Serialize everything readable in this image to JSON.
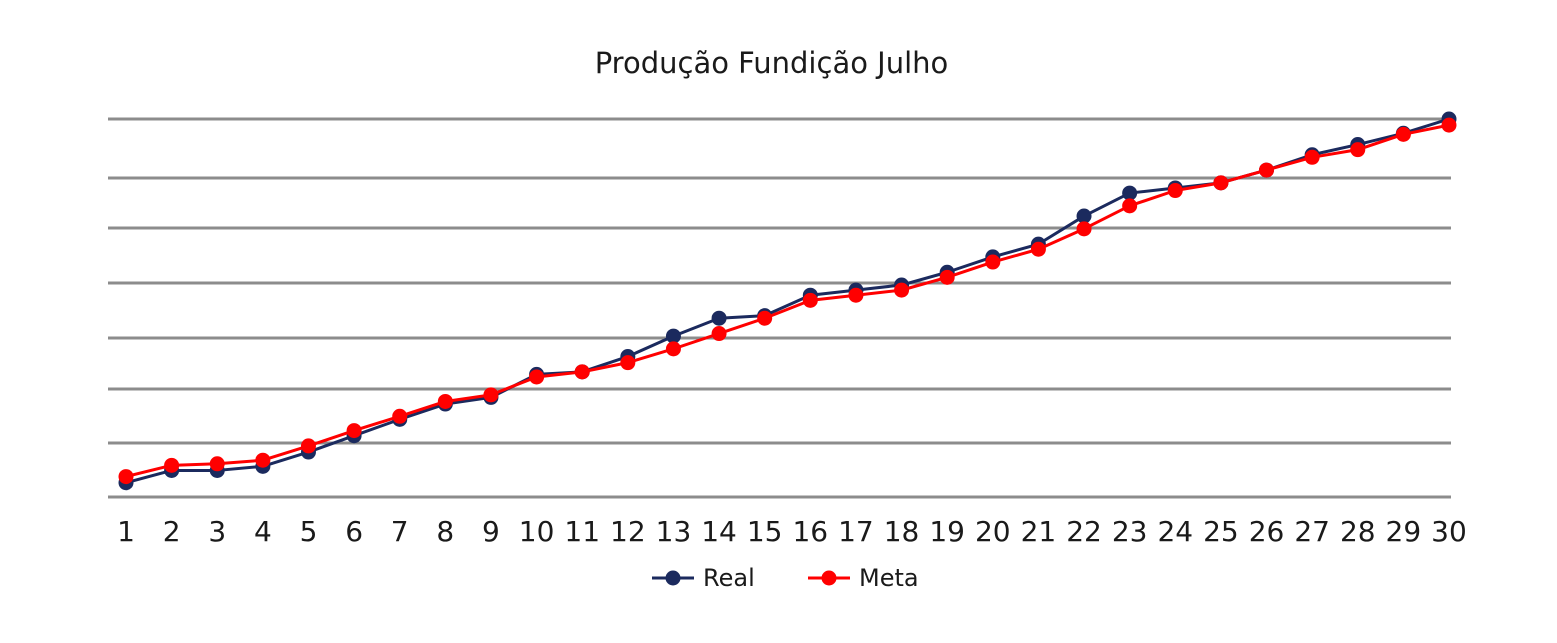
{
  "chart_data": {
    "type": "line",
    "title": "Produção Fundição Julho",
    "xlabel": "",
    "ylabel": "",
    "categories": [
      "1",
      "2",
      "3",
      "4",
      "5",
      "6",
      "7",
      "8",
      "9",
      "10",
      "11",
      "12",
      "13",
      "14",
      "15",
      "16",
      "17",
      "18",
      "19",
      "20",
      "21",
      "22",
      "23",
      "24",
      "25",
      "26",
      "27",
      "28",
      "29",
      "30"
    ],
    "ylim": [
      0,
      7
    ],
    "grid": true,
    "legend": "bottom",
    "series": [
      {
        "name": "Real",
        "color": "#1b2a5e",
        "values": [
          -0.12,
          0.12,
          0.12,
          0.2,
          0.48,
          0.8,
          1.12,
          1.42,
          1.55,
          2.0,
          2.05,
          2.35,
          2.75,
          3.1,
          3.15,
          3.55,
          3.65,
          3.75,
          4.0,
          4.3,
          4.55,
          5.1,
          5.55,
          5.65,
          5.75,
          6.0,
          6.3,
          6.5,
          6.72,
          7.0
        ],
        "marker": "circle"
      },
      {
        "name": "Meta",
        "color": "#ff0000",
        "values": [
          0.0,
          0.22,
          0.25,
          0.32,
          0.6,
          0.9,
          1.18,
          1.47,
          1.6,
          1.95,
          2.05,
          2.23,
          2.5,
          2.8,
          3.1,
          3.45,
          3.55,
          3.65,
          3.9,
          4.2,
          4.45,
          4.85,
          5.3,
          5.6,
          5.75,
          6.0,
          6.25,
          6.4,
          6.7,
          6.88
        ],
        "marker": "circle"
      }
    ]
  }
}
